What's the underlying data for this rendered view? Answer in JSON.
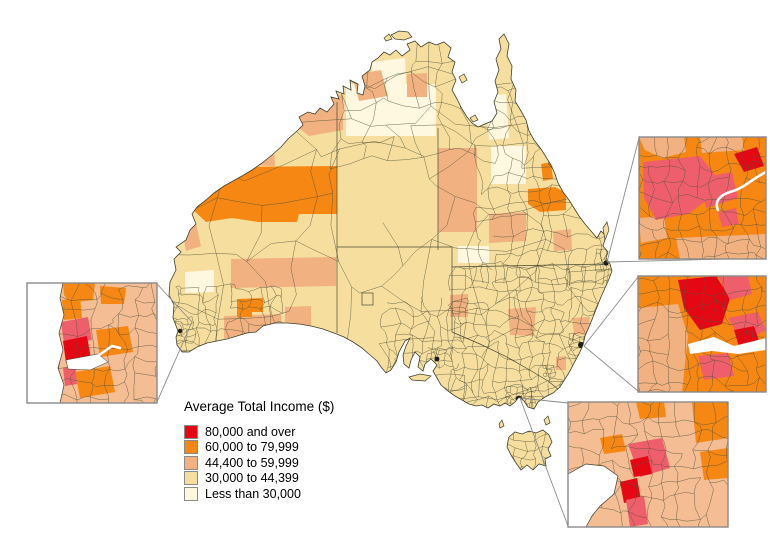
{
  "legend": {
    "title": "Average Total Income ($)",
    "items": [
      {
        "label": "80,000 and over",
        "color": "#e60714"
      },
      {
        "label": "60,000 to 79,999",
        "color": "#f68712"
      },
      {
        "label": "44,400 to 59,999",
        "color": "#f2b180"
      },
      {
        "label": "30,000 to 44,399",
        "color": "#f6df9e"
      },
      {
        "label": "Less than 30,000",
        "color": "#fdf8df"
      }
    ]
  },
  "palette": {
    "rose": "#ef5f6b",
    "water": "#ffffff",
    "boundary": "#55553c",
    "callout": "#8a8a8a",
    "inset_border": "#8a8a8a"
  }
}
